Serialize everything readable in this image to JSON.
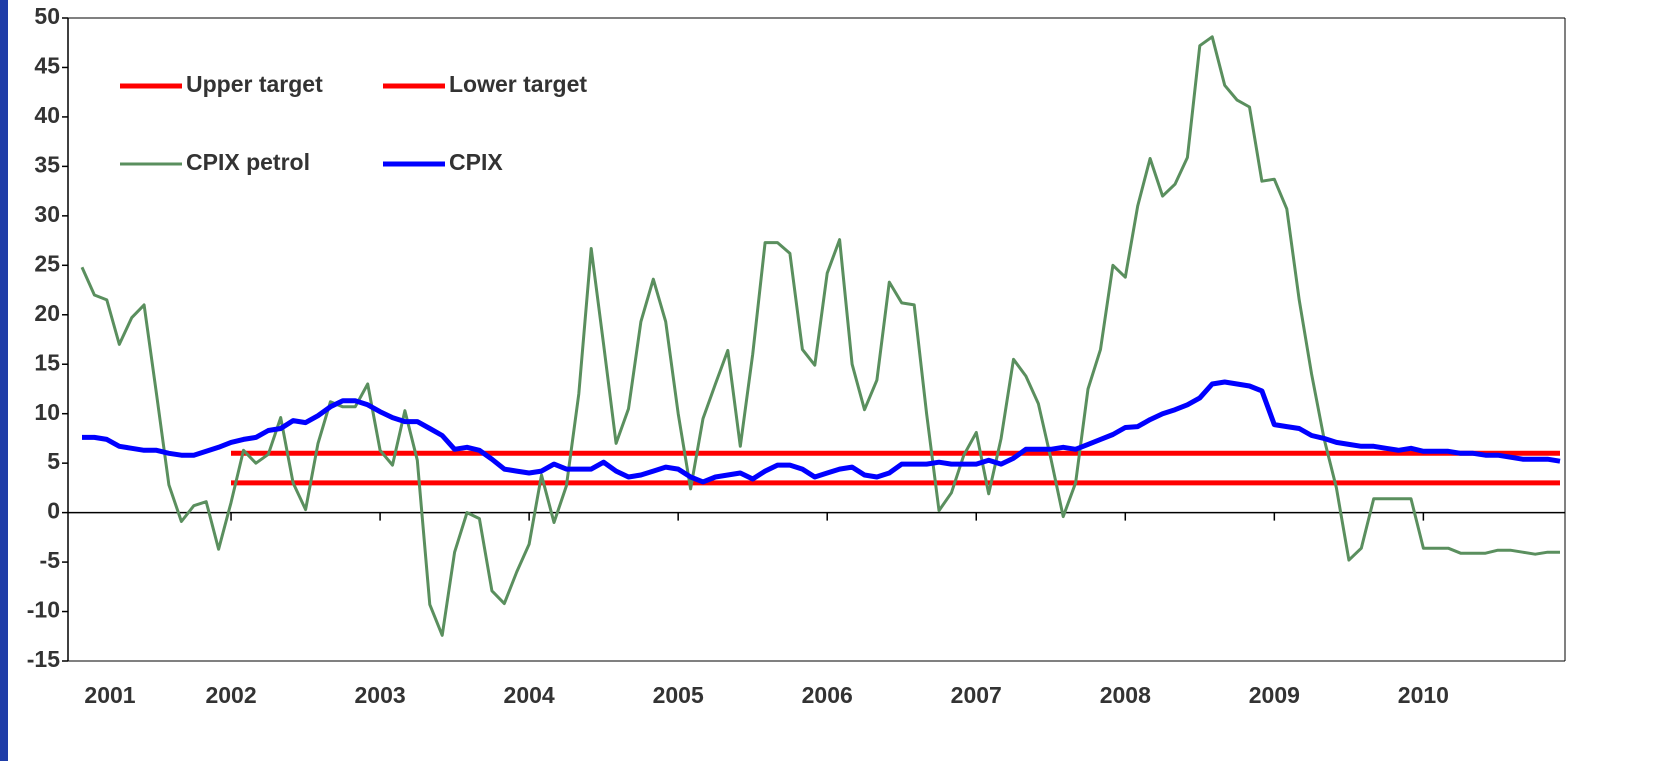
{
  "chart_data": {
    "type": "line",
    "categories": [
      "2001",
      null,
      null,
      null,
      null,
      null,
      null,
      null,
      null,
      null,
      null,
      null,
      "2002",
      null,
      null,
      null,
      null,
      null,
      null,
      null,
      null,
      null,
      null,
      null,
      "2003",
      null,
      null,
      null,
      null,
      null,
      null,
      null,
      null,
      null,
      null,
      null,
      "2004",
      null,
      null,
      null,
      null,
      null,
      null,
      null,
      null,
      null,
      null,
      null,
      "2005",
      null,
      null,
      null,
      null,
      null,
      null,
      null,
      null,
      null,
      null,
      null,
      "2006",
      null,
      null,
      null,
      null,
      null,
      null,
      null,
      null,
      null,
      null,
      null,
      "2007",
      null,
      null,
      null,
      null,
      null,
      null,
      null,
      null,
      null,
      null,
      null,
      "2008",
      null,
      null,
      null,
      null,
      null,
      null,
      null,
      null,
      null,
      null,
      null,
      "2009",
      null,
      null,
      null,
      null,
      null,
      null,
      null,
      null,
      null,
      null,
      null,
      "2010",
      null,
      null,
      null,
      null,
      null,
      null,
      null,
      null,
      null,
      null,
      null
    ],
    "series": [
      {
        "name": "Upper target",
        "color": "#ff0000",
        "values": [
          null,
          null,
          null,
          null,
          null,
          null,
          null,
          null,
          null,
          null,
          null,
          null,
          6,
          6,
          6,
          6,
          6,
          6,
          6,
          6,
          6,
          6,
          6,
          6,
          6,
          6,
          6,
          6,
          6,
          6,
          6,
          6,
          6,
          6,
          6,
          6,
          6,
          6,
          6,
          6,
          6,
          6,
          6,
          6,
          6,
          6,
          6,
          6,
          6,
          6,
          6,
          6,
          6,
          6,
          6,
          6,
          6,
          6,
          6,
          6,
          6,
          6,
          6,
          6,
          6,
          6,
          6,
          6,
          6,
          6,
          6,
          6,
          6,
          6,
          6,
          6,
          6,
          6,
          6,
          6,
          6,
          6,
          6,
          6,
          6,
          6,
          6,
          6,
          6,
          6,
          6,
          6,
          6,
          6,
          6,
          6,
          6,
          6,
          6,
          6,
          6,
          6,
          6,
          6,
          6,
          6,
          6,
          6,
          6,
          6,
          6,
          6,
          6,
          6,
          6,
          6,
          6,
          6,
          6,
          6
        ]
      },
      {
        "name": "Lower target",
        "color": "#ff0000",
        "values": [
          null,
          null,
          null,
          null,
          null,
          null,
          null,
          null,
          null,
          null,
          null,
          null,
          3,
          3,
          3,
          3,
          3,
          3,
          3,
          3,
          3,
          3,
          3,
          3,
          3,
          3,
          3,
          3,
          3,
          3,
          3,
          3,
          3,
          3,
          3,
          3,
          3,
          3,
          3,
          3,
          3,
          3,
          3,
          3,
          3,
          3,
          3,
          3,
          3,
          3,
          3,
          3,
          3,
          3,
          3,
          3,
          3,
          3,
          3,
          3,
          3,
          3,
          3,
          3,
          3,
          3,
          3,
          3,
          3,
          3,
          3,
          3,
          3,
          3,
          3,
          3,
          3,
          3,
          3,
          3,
          3,
          3,
          3,
          3,
          3,
          3,
          3,
          3,
          3,
          3,
          3,
          3,
          3,
          3,
          3,
          3,
          3,
          3,
          3,
          3,
          3,
          3,
          3,
          3,
          3,
          3,
          3,
          3,
          3,
          3,
          3,
          3,
          3,
          3,
          3,
          3,
          3,
          3,
          3,
          3
        ]
      },
      {
        "name": "CPIX petrol",
        "color": "#5a8f5e",
        "values": [
          24.8,
          22,
          21.5,
          17,
          19.7,
          21,
          12,
          2.8,
          -0.9,
          0.7,
          1.1,
          -3.7,
          1,
          6.3,
          5,
          5.9,
          9.6,
          3,
          0.3,
          7,
          11.2,
          10.7,
          10.7,
          13,
          6.3,
          4.8,
          10.3,
          5.3,
          -9.3,
          -12.4,
          -4,
          0,
          -0.6,
          -7.9,
          -9.2,
          -6,
          -3.2,
          3.8,
          -1,
          2.7,
          12,
          26.7,
          17,
          7,
          10.5,
          19.3,
          23.6,
          19.3,
          10,
          2.4,
          9.5,
          13,
          16.4,
          6.7,
          16,
          27.3,
          27.3,
          26.2,
          16.5,
          14.9,
          24.2,
          27.6,
          15,
          10.4,
          13.4,
          23.3,
          21.2,
          21,
          10,
          0.2,
          2,
          5.8,
          8.1,
          1.9,
          7.5,
          15.5,
          13.8,
          11,
          5.5,
          -0.4,
          3,
          12.5,
          16.5,
          25,
          23.8,
          31,
          35.8,
          32,
          33.2,
          35.9,
          47.2,
          48.1,
          43.2,
          41.7,
          41,
          33.5,
          33.7,
          30.7,
          21.5,
          14,
          7.5,
          2.5,
          -4.8,
          -3.6,
          1.4,
          1.4,
          1.4,
          1.4,
          -3.6,
          -3.6,
          -3.6,
          -4.1,
          -4.1,
          -4.1,
          -3.8,
          -3.8,
          -4,
          -4.2,
          -4,
          -4
        ]
      },
      {
        "name": "CPIX",
        "color": "#0000ff",
        "values": [
          7.6,
          7.6,
          7.4,
          6.7,
          6.5,
          6.3,
          6.3,
          6,
          5.8,
          5.8,
          6.2,
          6.6,
          7.1,
          7.4,
          7.6,
          8.3,
          8.5,
          9.3,
          9.1,
          9.8,
          10.7,
          11.3,
          11.3,
          10.9,
          10.2,
          9.6,
          9.2,
          9.2,
          8.5,
          7.8,
          6.4,
          6.6,
          6.3,
          5.4,
          4.4,
          4.2,
          4,
          4.2,
          4.9,
          4.4,
          4.4,
          4.4,
          5.1,
          4.2,
          3.6,
          3.8,
          4.2,
          4.6,
          4.4,
          3.6,
          3.1,
          3.6,
          3.8,
          4,
          3.4,
          4.2,
          4.8,
          4.8,
          4.4,
          3.6,
          4,
          4.4,
          4.6,
          3.8,
          3.6,
          4,
          4.9,
          4.9,
          4.9,
          5.1,
          4.9,
          4.9,
          4.9,
          5.3,
          4.9,
          5.5,
          6.4,
          6.4,
          6.4,
          6.6,
          6.4,
          6.9,
          7.4,
          7.9,
          8.6,
          8.7,
          9.4,
          10,
          10.4,
          10.9,
          11.6,
          13,
          13.2,
          13,
          12.8,
          12.3,
          8.9,
          8.7,
          8.5,
          7.8,
          7.5,
          7.1,
          6.9,
          6.7,
          6.7,
          6.5,
          6.3,
          6.5,
          6.2,
          6.2,
          6.2,
          6,
          6,
          5.8,
          5.8,
          5.6,
          5.4,
          5.4,
          5.4,
          5.2
        ]
      }
    ],
    "ylim": [
      -15,
      50
    ],
    "yticks": [
      -15,
      -10,
      -5,
      0,
      5,
      10,
      15,
      20,
      25,
      30,
      35,
      40,
      45,
      50
    ],
    "legend": "upper-left"
  }
}
